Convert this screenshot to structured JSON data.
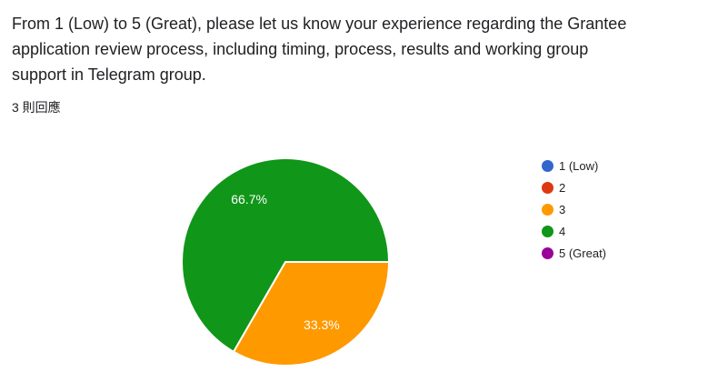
{
  "question": {
    "title": "From 1 (Low) to 5 (Great), please let us know your experience regarding the Grantee application review process, including timing, process, results and working group support in Telegram group.",
    "title_lines": [
      "From 1 (Low) to 5 (Great), please let us know your experience regarding the Grantee",
      "application review process, including timing, process, results and working group",
      "support in Telegram group."
    ],
    "responses_label": "3 則回應"
  },
  "chart_data": {
    "type": "pie",
    "title": "",
    "categories": [
      "1 (Low)",
      "2",
      "3",
      "4",
      "5 (Great)"
    ],
    "values": [
      0,
      0,
      1,
      2,
      0
    ],
    "percents": [
      0,
      0,
      33.3,
      66.7,
      0
    ],
    "slice_labels": [
      "",
      "",
      "33.3%",
      "66.7%",
      ""
    ],
    "colors": [
      "#3366cc",
      "#dc3912",
      "#ff9900",
      "#109618",
      "#990099"
    ],
    "total_responses": 3,
    "legend_position": "right",
    "start_angle_deg": 90,
    "label_radius_ratio": 0.7,
    "slice_border_color": "#ffffff",
    "slice_label_color": "#ffffff",
    "slice_label_font_size": 14
  }
}
